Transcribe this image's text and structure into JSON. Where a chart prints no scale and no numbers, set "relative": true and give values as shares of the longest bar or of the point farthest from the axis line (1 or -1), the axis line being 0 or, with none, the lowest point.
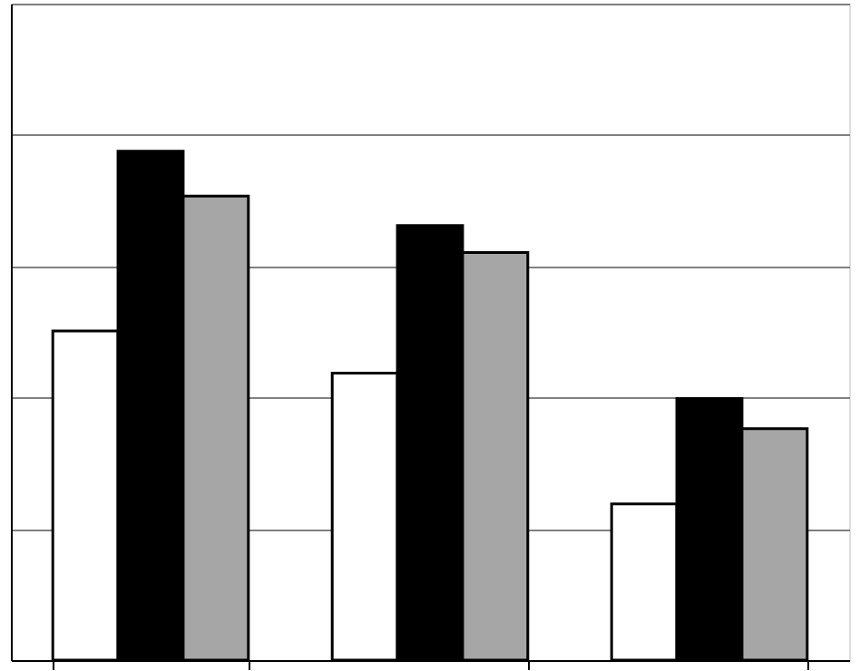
{
  "chart_data": {
    "type": "bar",
    "relative": true,
    "categories": [
      null,
      null,
      null
    ],
    "grid": "y",
    "series": [
      {
        "color": "#ffffff",
        "values": [
          0.647,
          0.564,
          0.307
        ]
      },
      {
        "color": "#000000",
        "values": [
          1,
          0.854,
          0.514
        ]
      },
      {
        "color": "#a6a6a6",
        "values": [
          0.912,
          0.801,
          0.455
        ]
      }
    ]
  }
}
